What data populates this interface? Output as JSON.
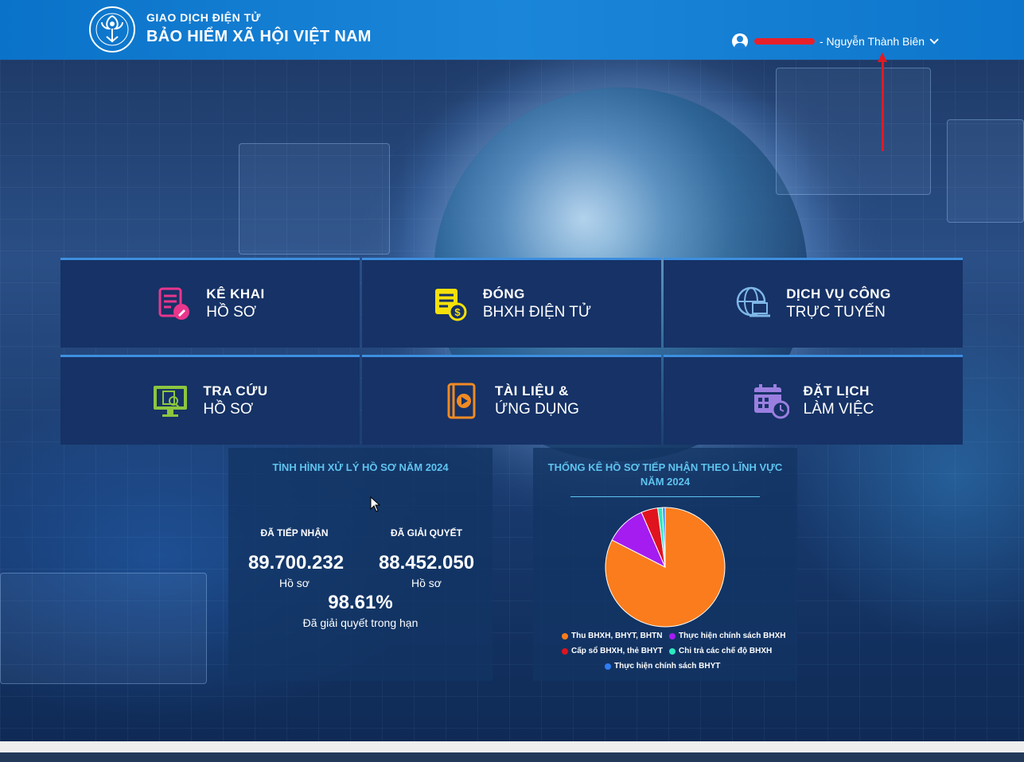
{
  "header": {
    "brand_top": "GIAO DỊCH ĐIỆN TỬ",
    "brand_main": "BẢO HIỂM XÃ HỘI VIỆT NAM",
    "user_name": "- Nguyễn Thành Biên"
  },
  "tiles": [
    {
      "title": "KÊ KHAI",
      "sub": "HỒ SƠ",
      "icon": "file-edit-icon",
      "color": "#e9368c"
    },
    {
      "title": "ĐÓNG",
      "sub": "BHXH ĐIỆN TỬ",
      "icon": "bill-dollar-icon",
      "color": "#f5e10a"
    },
    {
      "title": "DỊCH VỤ CÔNG",
      "sub": "TRỰC TUYẾN",
      "icon": "globe-laptop-icon",
      "color": "#7fb6e8"
    },
    {
      "title": "TRA CỨU",
      "sub": "HỒ SƠ",
      "icon": "monitor-search-icon",
      "color": "#8cc63f"
    },
    {
      "title": "TÀI LIỆU &",
      "sub": "ỨNG DỤNG",
      "icon": "book-play-icon",
      "color": "#f08a24"
    },
    {
      "title": "ĐẶT LỊCH",
      "sub": "LÀM VIỆC",
      "icon": "calendar-clock-icon",
      "color": "#9b7fe0"
    }
  ],
  "stats": {
    "title": "TÌNH HÌNH XỬ LÝ HỒ SƠ NĂM 2024",
    "received_label": "ĐÃ TIẾP NHẬN",
    "received_value": "89.700.232",
    "resolved_label": "ĐÃ GIẢI QUYẾT",
    "resolved_value": "88.452.050",
    "unit": "Hồ sơ",
    "rate": "98.61%",
    "rate_label": "Đã giải quyết trong hạn"
  },
  "pie_panel": {
    "title_line1": "THỐNG KÊ HỒ SƠ TIẾP NHẬN THEO LĨNH VỰC",
    "title_line2": "NĂM 2024"
  },
  "chart_data": {
    "type": "pie",
    "title": "THỐNG KÊ HỒ SƠ TIẾP NHẬN THEO LĨNH VỰC NĂM 2024",
    "slices": [
      {
        "name": "Thu BHXH, BHYT, BHTN",
        "value": 82.5,
        "color": "#fb7c1c"
      },
      {
        "name": "Thực hiện chính sách BHXH",
        "value": 11.0,
        "color": "#a51cf0"
      },
      {
        "name": "Cấp sổ BHXH, thẻ BHYT",
        "value": 4.5,
        "color": "#e0141e"
      },
      {
        "name": "Chi trả các chế độ BHXH",
        "value": 1.3,
        "color": "#2ee8c0"
      },
      {
        "name": "Thực hiện chính sách BHYT",
        "value": 0.7,
        "color": "#2f7df5"
      }
    ],
    "legend": "bottom"
  }
}
